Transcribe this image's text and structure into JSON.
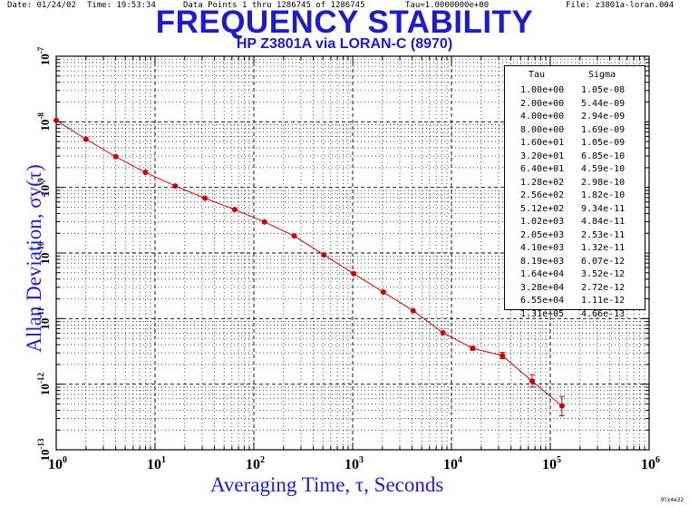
{
  "header": {
    "date": "Date: 01/24/02",
    "time": "Time: 19:53:34",
    "points": "Data Points 1 thru 1286745 of 1286745",
    "tau": "Tau=1.0000000e+00",
    "file": "File: z3801a-loran.004"
  },
  "footer": {
    "corner": "9lx4e32"
  },
  "chart_data": {
    "type": "line",
    "title": "FREQUENCY STABILITY",
    "subtitle": "HP Z3801A via LORAN-C (8970)",
    "xlabel": "Averaging Time, τ, Seconds",
    "ylabel": "Allan Deviation, σy(τ)",
    "xlim": [
      1,
      1000000
    ],
    "ylim": [
      1e-13,
      1e-07
    ],
    "xscale": "log",
    "yscale": "log",
    "grid": true,
    "legend_position": "top-right",
    "x_ticks": [
      {
        "base": "10",
        "exp": "0",
        "value": 1
      },
      {
        "base": "10",
        "exp": "1",
        "value": 10
      },
      {
        "base": "10",
        "exp": "2",
        "value": 100
      },
      {
        "base": "10",
        "exp": "3",
        "value": 1000
      },
      {
        "base": "10",
        "exp": "4",
        "value": 10000
      },
      {
        "base": "10",
        "exp": "5",
        "value": 100000
      },
      {
        "base": "10",
        "exp": "6",
        "value": 1000000
      }
    ],
    "y_ticks": [
      {
        "base": "10",
        "exp": "-7",
        "value": 1e-07
      },
      {
        "base": "10",
        "exp": "-8",
        "value": 1e-08
      },
      {
        "base": "10",
        "exp": "-9",
        "value": 1e-09
      },
      {
        "base": "10",
        "exp": "-10",
        "value": 1e-10
      },
      {
        "base": "10",
        "exp": "-11",
        "value": 1e-11
      },
      {
        "base": "10",
        "exp": "-12",
        "value": 1e-12
      },
      {
        "base": "10",
        "exp": "-13",
        "value": 1e-13
      }
    ],
    "table_headers": {
      "tau": "Tau",
      "sigma": "Sigma"
    },
    "table": [
      {
        "tau": "1.00e+00",
        "sigma": "1.05e-08"
      },
      {
        "tau": "2.00e+00",
        "sigma": "5.44e-09"
      },
      {
        "tau": "4.00e+00",
        "sigma": "2.94e-09"
      },
      {
        "tau": "8.00e+00",
        "sigma": "1.69e-09"
      },
      {
        "tau": "1.60e+01",
        "sigma": "1.05e-09"
      },
      {
        "tau": "3.20e+01",
        "sigma": "6.85e-10"
      },
      {
        "tau": "6.40e+01",
        "sigma": "4.59e-10"
      },
      {
        "tau": "1.28e+02",
        "sigma": "2.98e-10"
      },
      {
        "tau": "2.56e+02",
        "sigma": "1.82e-10"
      },
      {
        "tau": "5.12e+02",
        "sigma": "9.34e-11"
      },
      {
        "tau": "1.02e+03",
        "sigma": "4.84e-11"
      },
      {
        "tau": "2.05e+03",
        "sigma": "2.53e-11"
      },
      {
        "tau": "4.10e+03",
        "sigma": "1.32e-11"
      },
      {
        "tau": "8.19e+03",
        "sigma": "6.07e-12"
      },
      {
        "tau": "1.64e+04",
        "sigma": "3.52e-12"
      },
      {
        "tau": "3.28e+04",
        "sigma": "2.72e-12"
      },
      {
        "tau": "6.55e+04",
        "sigma": "1.11e-12"
      },
      {
        "tau": "1.31e+05",
        "sigma": "4.66e-13"
      }
    ],
    "series": [
      {
        "color": "#cc0000",
        "x": [
          1,
          2,
          4,
          8,
          16,
          32,
          64,
          128,
          256,
          512,
          1024,
          2048,
          4096,
          8192,
          16384,
          32768,
          65536,
          131072
        ],
        "y": [
          1.05e-08,
          5.44e-09,
          2.94e-09,
          1.69e-09,
          1.05e-09,
          6.85e-10,
          4.59e-10,
          2.98e-10,
          1.82e-10,
          9.34e-11,
          4.84e-11,
          2.53e-11,
          1.32e-11,
          6.07e-12,
          3.52e-12,
          2.72e-12,
          1.11e-12,
          4.66e-13
        ],
        "err_lo": [
          1.05e-08,
          5.44e-09,
          2.94e-09,
          1.69e-09,
          1.05e-09,
          6.85e-10,
          4.59e-10,
          2.98e-10,
          1.82e-10,
          9.34e-11,
          4.84e-11,
          2.53e-11,
          1.32e-11,
          6.07e-12,
          3.3e-12,
          2.45e-12,
          9e-13,
          3.3e-13
        ],
        "err_hi": [
          1.05e-08,
          5.44e-09,
          2.94e-09,
          1.69e-09,
          1.05e-09,
          6.85e-10,
          4.59e-10,
          2.98e-10,
          1.82e-10,
          9.34e-11,
          4.84e-11,
          2.53e-11,
          1.32e-11,
          6.07e-12,
          3.75e-12,
          3.05e-12,
          1.4e-12,
          6.5e-13
        ]
      }
    ]
  }
}
